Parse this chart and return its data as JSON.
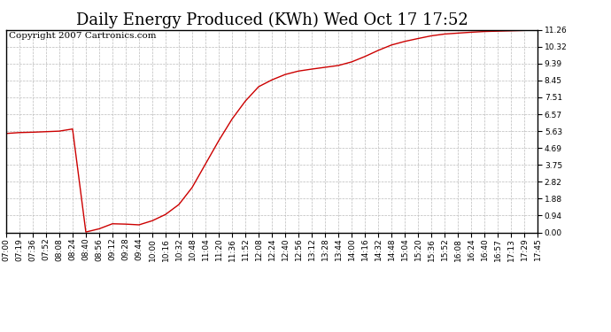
{
  "title": "Daily Energy Produced (KWh) Wed Oct 17 17:52",
  "copyright_text": "Copyright 2007 Cartronics.com",
  "line_color": "#cc0000",
  "background_color": "#ffffff",
  "plot_bg_color": "#ffffff",
  "grid_color": "#bbbbbb",
  "ylim": [
    0.0,
    11.26
  ],
  "yticks": [
    0.0,
    0.94,
    1.88,
    2.82,
    3.75,
    4.69,
    5.63,
    6.57,
    7.51,
    8.45,
    9.39,
    10.32,
    11.26
  ],
  "xtick_labels": [
    "07:00",
    "07:19",
    "07:36",
    "07:52",
    "08:08",
    "08:24",
    "08:40",
    "08:56",
    "09:12",
    "09:28",
    "09:44",
    "10:00",
    "10:16",
    "10:32",
    "10:48",
    "11:04",
    "11:20",
    "11:36",
    "11:52",
    "12:08",
    "12:24",
    "12:40",
    "12:56",
    "13:12",
    "13:28",
    "13:44",
    "14:00",
    "14:16",
    "14:32",
    "14:48",
    "15:04",
    "15:20",
    "15:36",
    "15:52",
    "16:08",
    "16:24",
    "16:40",
    "16:57",
    "17:13",
    "17:29",
    "17:45"
  ],
  "x_data": [
    0,
    1,
    2,
    3,
    4,
    5,
    6,
    7,
    8,
    9,
    10,
    11,
    12,
    13,
    14,
    15,
    16,
    17,
    18,
    19,
    20,
    21,
    22,
    23,
    24,
    25,
    26,
    27,
    28,
    29,
    30,
    31,
    32,
    33,
    34,
    35,
    36,
    37,
    38,
    39,
    40
  ],
  "y_data": [
    5.5,
    5.55,
    5.57,
    5.6,
    5.63,
    5.75,
    0.02,
    0.2,
    0.48,
    0.46,
    0.42,
    0.65,
    1.0,
    1.55,
    2.5,
    3.8,
    5.1,
    6.3,
    7.3,
    8.1,
    8.48,
    8.78,
    8.97,
    9.08,
    9.18,
    9.28,
    9.48,
    9.78,
    10.12,
    10.42,
    10.62,
    10.78,
    10.93,
    11.03,
    11.08,
    11.13,
    11.17,
    11.19,
    11.21,
    11.23,
    11.26
  ],
  "title_fontsize": 13,
  "tick_fontsize": 6.5,
  "copyright_fontsize": 7.5,
  "figwidth": 6.9,
  "figheight": 3.75,
  "dpi": 100
}
